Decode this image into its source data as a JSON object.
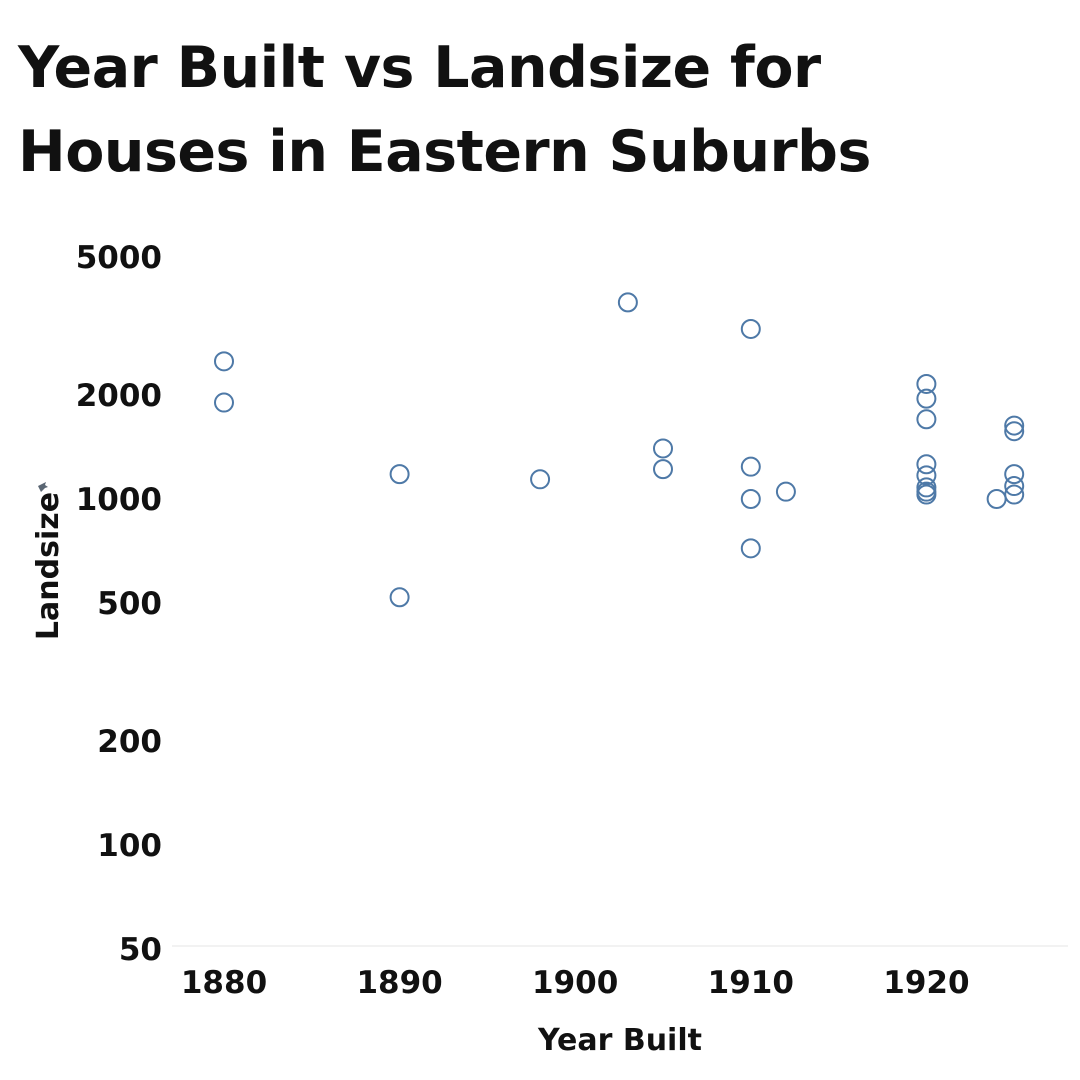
{
  "chart_data": {
    "type": "scatter",
    "title": "Year Built vs Landsize for Houses in Eastern Suburbs",
    "xlabel": "Year Built",
    "ylabel": "Landsize",
    "xlim": [
      1877,
      1928
    ],
    "ylim": [
      40,
      6000
    ],
    "yscale": "log",
    "x_ticks": [
      1880,
      1890,
      1900,
      1910,
      1920
    ],
    "y_ticks": [
      50,
      100,
      200,
      500,
      1000,
      2000,
      5000
    ],
    "grid": false,
    "marker": "open-circle",
    "color": "#4e79a7",
    "points": [
      {
        "x": 1880,
        "y": 2500
      },
      {
        "x": 1880,
        "y": 1900
      },
      {
        "x": 1890,
        "y": 1180
      },
      {
        "x": 1890,
        "y": 520
      },
      {
        "x": 1898,
        "y": 1140
      },
      {
        "x": 1903,
        "y": 3700
      },
      {
        "x": 1905,
        "y": 1400
      },
      {
        "x": 1905,
        "y": 1220
      },
      {
        "x": 1910,
        "y": 3100
      },
      {
        "x": 1910,
        "y": 1240
      },
      {
        "x": 1910,
        "y": 1000
      },
      {
        "x": 1910,
        "y": 720
      },
      {
        "x": 1912,
        "y": 1050
      },
      {
        "x": 1920,
        "y": 2150
      },
      {
        "x": 1920,
        "y": 1950
      },
      {
        "x": 1920,
        "y": 1700
      },
      {
        "x": 1920,
        "y": 1260
      },
      {
        "x": 1920,
        "y": 1170
      },
      {
        "x": 1920,
        "y": 1080
      },
      {
        "x": 1920,
        "y": 1050
      },
      {
        "x": 1920,
        "y": 1030
      },
      {
        "x": 1924,
        "y": 1000
      },
      {
        "x": 1925,
        "y": 1630
      },
      {
        "x": 1925,
        "y": 1570
      },
      {
        "x": 1925,
        "y": 1180
      },
      {
        "x": 1925,
        "y": 1090
      },
      {
        "x": 1925,
        "y": 1030
      }
    ]
  }
}
